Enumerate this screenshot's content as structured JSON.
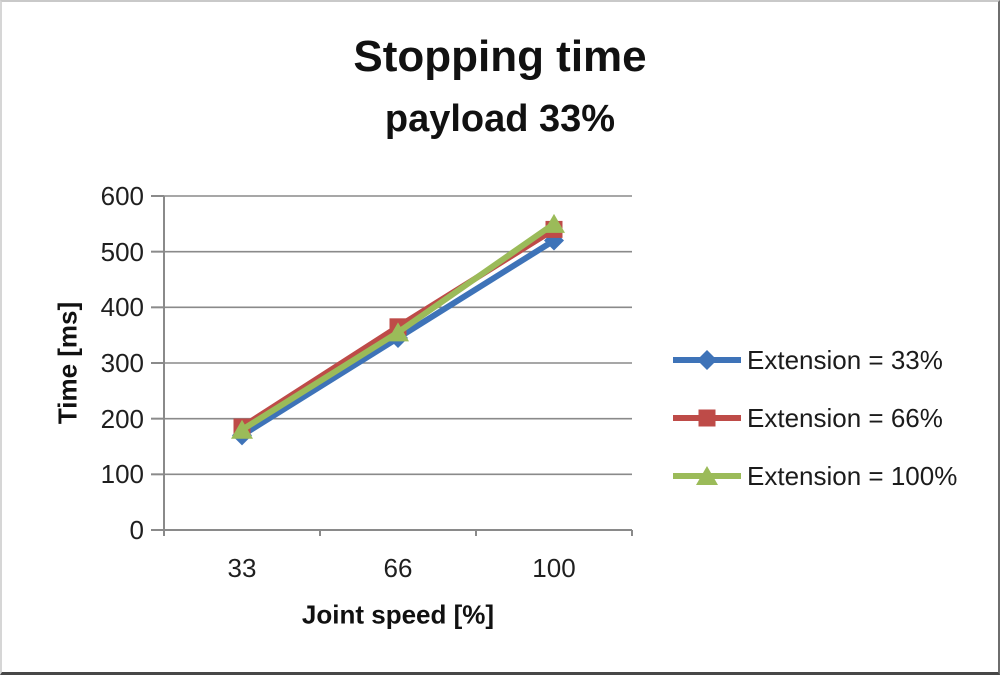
{
  "chart_data": {
    "type": "line",
    "title": "Stopping time",
    "subtitle": "payload 33%",
    "xlabel": "Joint speed [%]",
    "ylabel": "Time [ms]",
    "categories": [
      "33",
      "66",
      "100"
    ],
    "x_values": [
      33,
      66,
      100
    ],
    "ylim": [
      0,
      600
    ],
    "yticks": [
      0,
      100,
      200,
      300,
      400,
      500,
      600
    ],
    "grid": true,
    "legend_position": "right",
    "series": [
      {
        "name": "Extension = 33%",
        "marker": "diamond",
        "color": "#3E73B8",
        "values": [
          170,
          345,
          520
        ]
      },
      {
        "name": "Extension = 66%",
        "marker": "square",
        "color": "#BE4B48",
        "values": [
          185,
          365,
          540
        ]
      },
      {
        "name": "Extension = 100%",
        "marker": "triangle",
        "color": "#9BBB59",
        "values": [
          180,
          355,
          550
        ]
      }
    ]
  },
  "style": {
    "grid_color": "#8a8a8a",
    "axis_color": "#8a8a8a",
    "text_color": "#1f1f1f",
    "background": "#ffffff"
  }
}
